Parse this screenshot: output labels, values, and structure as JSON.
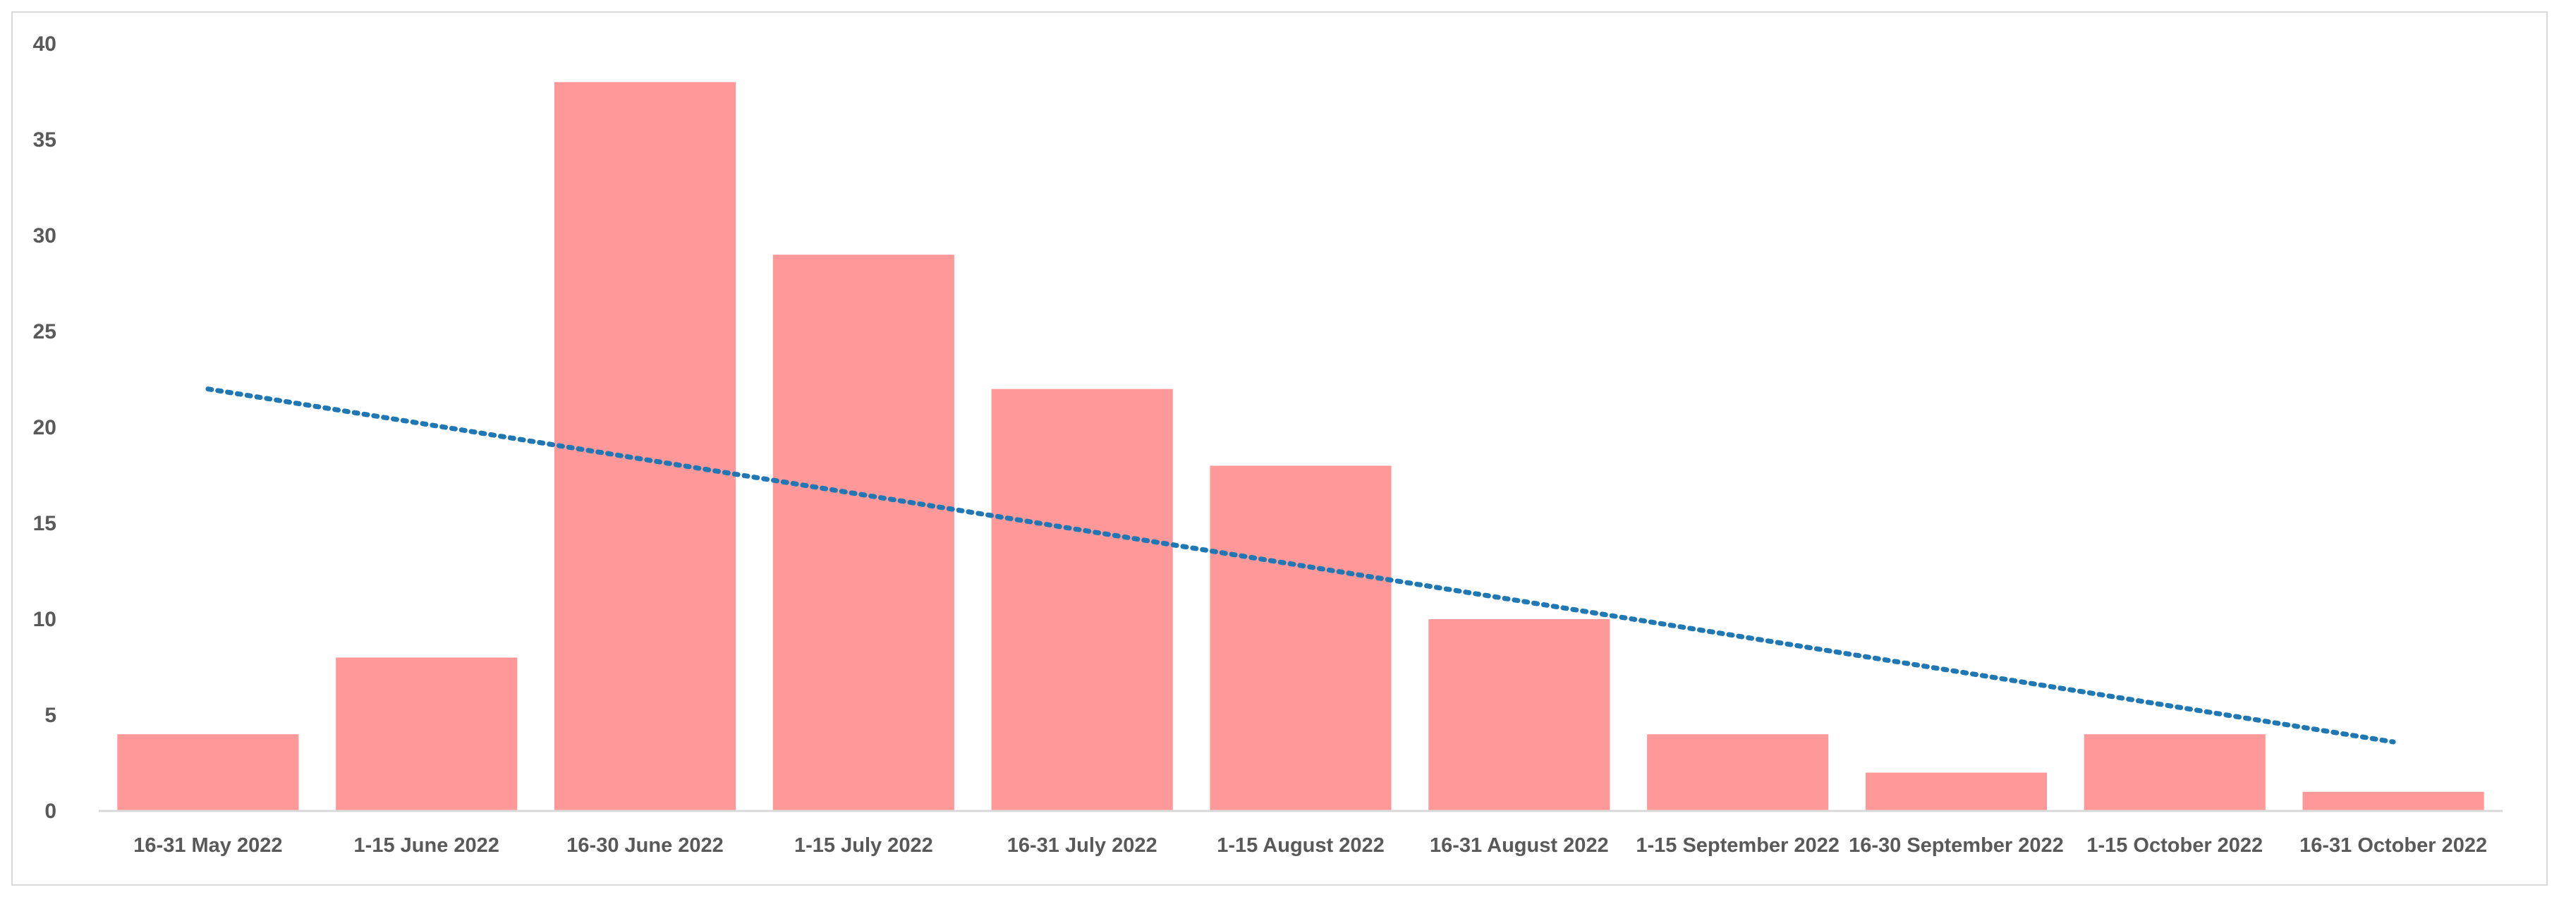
{
  "chart_data": {
    "type": "bar",
    "title": "",
    "xlabel": "",
    "ylabel": "",
    "categories": [
      "16-31 May 2022",
      "1-15 June 2022",
      "16-30 June 2022",
      "1-15 July 2022",
      "16-31 July 2022",
      "1-15 August 2022",
      "16-31 August 2022",
      "1-15 September 2022",
      "16-30 September 2022",
      "1-15 October 2022",
      "16-31 October 2022"
    ],
    "values": [
      4,
      8,
      38,
      29,
      22,
      18,
      10,
      4,
      2,
      4,
      1
    ],
    "ylim": [
      0,
      40
    ],
    "yticks": [
      "0",
      "5",
      "10",
      "15",
      "20",
      "25",
      "30",
      "35",
      "40"
    ],
    "grid": false,
    "legend": "none",
    "bar_color": "#ff9999",
    "trendline": {
      "type": "linear",
      "style": "dotted",
      "color": "#1f77b4",
      "start": 22,
      "end": 3.6
    },
    "axis_color": "#d9d9d9",
    "text_color": "#595959"
  }
}
